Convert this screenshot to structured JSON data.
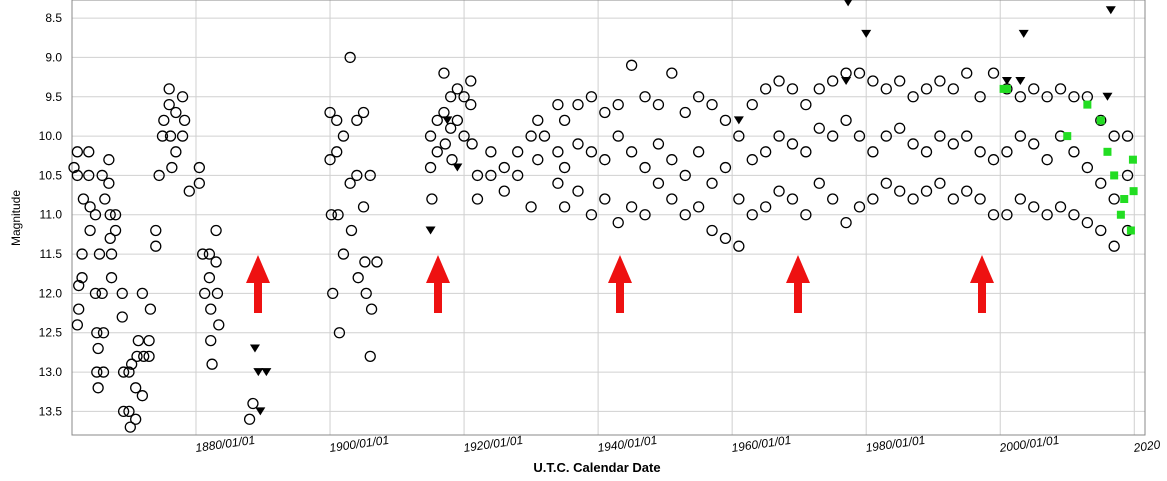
{
  "chart_data": {
    "type": "scatter",
    "xlabel": "U.T.C. Calendar Date",
    "ylabel": "Magnitude",
    "xlim": [
      1861.5,
      2021.6
    ],
    "ylim": [
      13.8,
      8.27
    ],
    "xticks": [
      {
        "value": 1880,
        "label": "1880/01/01"
      },
      {
        "value": 1900,
        "label": "1900/01/01"
      },
      {
        "value": 1920,
        "label": "1920/01/01"
      },
      {
        "value": 1940,
        "label": "1940/01/01"
      },
      {
        "value": 1960,
        "label": "1960/01/01"
      },
      {
        "value": 1980,
        "label": "1980/01/01"
      },
      {
        "value": 2000,
        "label": "2000/01/01"
      },
      {
        "value": 2020,
        "label": "2020"
      }
    ],
    "yticks": [
      8.5,
      {
        "value": 9,
        "label": "9.0"
      },
      9.5,
      {
        "value": 10,
        "label": "10.0"
      },
      10.5,
      {
        "value": 11,
        "label": "11.0"
      },
      11.5,
      {
        "value": 12,
        "label": "12.0"
      },
      12.5,
      {
        "value": 13,
        "label": "13.0"
      },
      13.5
    ],
    "grid": true,
    "series": [
      {
        "marker": "circle",
        "color": "#000000",
        "x": [
          1861.8,
          1862.3,
          1862.3,
          1862.3,
          1862.5,
          1862.5,
          1863,
          1863,
          1863.2,
          1864,
          1864,
          1864.2,
          1864.2,
          1865,
          1865,
          1865.2,
          1865.2,
          1865.4,
          1865.4,
          1865.6,
          1866,
          1866,
          1866.2,
          1866.2,
          1866.4,
          1867,
          1867,
          1867.2,
          1867.2,
          1867.4,
          1867.4,
          1868,
          1868,
          1869,
          1869,
          1869.2,
          1869.2,
          1870,
          1870,
          1870.2,
          1870.4,
          1871,
          1871,
          1871.2,
          1871.4,
          1872,
          1872,
          1872.2,
          1873,
          1873,
          1873.2,
          1874,
          1874,
          1874.5,
          1875,
          1875.2,
          1876,
          1876,
          1876.2,
          1876.4,
          1877,
          1877,
          1878,
          1878,
          1878.3,
          1879,
          1880.5,
          1880.5,
          1881,
          1881.3,
          1882,
          1882,
          1882.2,
          1882.2,
          1882.4,
          1883,
          1883,
          1883.2,
          1883.4,
          1888,
          1888.5,
          1900,
          1900,
          1900.2,
          1900.4,
          1901,
          1901,
          1901.2,
          1901.4,
          1902,
          1902,
          1903,
          1903,
          1903.2,
          1904,
          1904,
          1904.2,
          1905,
          1905,
          1905.2,
          1905.4,
          1906,
          1906,
          1906.2,
          1907,
          1915,
          1915,
          1915.2,
          1916,
          1916,
          1917,
          1917,
          1917.2,
          1918,
          1918,
          1918.2,
          1919,
          1919,
          1920,
          1920,
          1921,
          1921,
          1921.2,
          1922,
          1922,
          1924,
          1924,
          1926,
          1926,
          1928,
          1928,
          1930,
          1930,
          1931,
          1931,
          1932,
          1934,
          1934,
          1934,
          1935,
          1935,
          1935,
          1937,
          1937,
          1937,
          1939,
          1939,
          1939,
          1941,
          1941,
          1941,
          1943,
          1943,
          1943,
          1945,
          1945,
          1945,
          1947,
          1947,
          1947,
          1949,
          1949,
          1949,
          1951,
          1951,
          1951,
          1953,
          1953,
          1953,
          1955,
          1955,
          1955,
          1957,
          1957,
          1957,
          1959,
          1959,
          1959,
          1961,
          1961,
          1961,
          1963,
          1963,
          1963,
          1965,
          1965,
          1965,
          1967,
          1967,
          1967,
          1969,
          1969,
          1969,
          1971,
          1971,
          1971,
          1973,
          1973,
          1973,
          1975,
          1975,
          1975,
          1977,
          1977,
          1977,
          1979,
          1979,
          1979,
          1981,
          1981,
          1981,
          1983,
          1983,
          1983,
          1985,
          1985,
          1985,
          1987,
          1987,
          1987,
          1989,
          1989,
          1989,
          1991,
          1991,
          1991,
          1993,
          1993,
          1993,
          1995,
          1995,
          1995,
          1997,
          1997,
          1997,
          1999,
          1999,
          1999,
          2001,
          2001,
          2001,
          2003,
          2003,
          2003,
          2005,
          2005,
          2005,
          2007,
          2007,
          2007,
          2009,
          2009,
          2009,
          2011,
          2011,
          2011,
          2013,
          2013,
          2013,
          2015,
          2015,
          2015,
          2017,
          2017,
          2017,
          2019,
          2019,
          2019
        ],
        "values": [
          10.4,
          10.2,
          10.5,
          12.4,
          11.9,
          12.2,
          11.5,
          11.8,
          10.8,
          10.2,
          10.5,
          11.2,
          10.9,
          11.0,
          12.0,
          12.5,
          13.0,
          13.2,
          12.7,
          11.5,
          10.5,
          12.0,
          12.5,
          13.0,
          10.8,
          10.3,
          10.6,
          11.0,
          11.3,
          11.5,
          11.8,
          11.0,
          11.2,
          12.0,
          12.3,
          13.0,
          13.5,
          13.0,
          13.5,
          13.7,
          12.9,
          13.2,
          13.6,
          12.8,
          12.6,
          13.3,
          12.0,
          12.8,
          12.6,
          12.8,
          12.2,
          11.2,
          11.4,
          10.5,
          10.0,
          9.8,
          9.4,
          9.6,
          10.0,
          10.4,
          9.7,
          10.2,
          9.5,
          10.0,
          9.8,
          10.7,
          10.4,
          10.6,
          11.5,
          12.0,
          11.5,
          11.8,
          12.2,
          12.6,
          12.9,
          11.2,
          11.6,
          12.0,
          12.4,
          13.6,
          13.4,
          10.3,
          9.7,
          11.0,
          12.0,
          9.8,
          10.2,
          11.0,
          12.5,
          10.0,
          11.5,
          9.0,
          10.6,
          11.2,
          9.8,
          10.5,
          11.8,
          9.7,
          10.9,
          11.6,
          12.0,
          10.5,
          12.8,
          12.2,
          11.6,
          10.0,
          10.4,
          10.8,
          9.8,
          10.2,
          9.2,
          9.7,
          10.1,
          9.5,
          9.9,
          10.3,
          9.4,
          9.8,
          9.5,
          10.0,
          9.3,
          9.6,
          10.1,
          10.5,
          10.8,
          10.2,
          10.5,
          10.4,
          10.7,
          10.2,
          10.5,
          10.0,
          10.9,
          10.3,
          9.8,
          10.0,
          9.6,
          10.2,
          10.6,
          9.8,
          10.4,
          10.9,
          9.6,
          10.1,
          10.7,
          9.5,
          10.2,
          11.0,
          9.7,
          10.3,
          10.8,
          9.6,
          10.0,
          11.1,
          9.1,
          10.2,
          10.9,
          9.5,
          10.4,
          11.0,
          9.6,
          10.1,
          10.6,
          9.2,
          10.3,
          10.8,
          9.7,
          10.5,
          11.0,
          9.5,
          10.2,
          10.9,
          9.6,
          10.6,
          11.2,
          9.8,
          10.4,
          11.3,
          10.0,
          10.8,
          11.4,
          9.6,
          10.3,
          11.0,
          9.4,
          10.2,
          10.9,
          9.3,
          10.0,
          10.7,
          9.4,
          10.1,
          10.8,
          9.6,
          10.2,
          11.0,
          9.4,
          9.9,
          10.6,
          9.3,
          10.0,
          10.8,
          9.2,
          9.8,
          11.1,
          9.2,
          10.0,
          10.9,
          9.3,
          10.2,
          10.8,
          9.4,
          10.0,
          10.6,
          9.3,
          9.9,
          10.7,
          9.5,
          10.1,
          10.8,
          9.4,
          10.2,
          10.7,
          9.3,
          10.0,
          10.6,
          9.4,
          10.1,
          10.8,
          9.2,
          10.0,
          10.7,
          9.5,
          10.2,
          10.8,
          9.2,
          10.3,
          11.0,
          9.4,
          10.2,
          11.0,
          9.5,
          10.0,
          10.8,
          9.4,
          10.1,
          10.9,
          9.5,
          10.3,
          11.0,
          9.4,
          10.0,
          10.9,
          9.5,
          10.2,
          11.0,
          9.5,
          10.4,
          11.1,
          9.8,
          10.6,
          11.2,
          10.0,
          10.8,
          11.4,
          10.0,
          10.5,
          11.2
        ]
      },
      {
        "marker": "triangle",
        "color": "#000000",
        "x": [
          1888.8,
          1889.3,
          1890.5,
          1889.6,
          1915.0,
          1917.5,
          1919.0,
          1961.0,
          1977.3,
          1980.0,
          1977.0,
          2001.0,
          2003.0,
          2003.5,
          2016.5,
          2016.0
        ],
        "values": [
          12.7,
          13.0,
          13.0,
          13.5,
          11.2,
          9.8,
          10.4,
          9.8,
          8.3,
          8.7,
          9.3,
          9.3,
          9.3,
          8.7,
          8.4,
          9.5
        ]
      },
      {
        "marker": "square",
        "color": "#22dd22",
        "x": [
          2000.5,
          2001.0,
          2010.0,
          2013.0,
          2015.0,
          2016.0,
          2017.0,
          2018.0,
          2018.5,
          2019.5,
          2019.8,
          2019.9
        ],
        "values": [
          9.4,
          9.4,
          10.0,
          9.6,
          9.8,
          10.2,
          10.5,
          11.0,
          10.8,
          11.2,
          10.3,
          10.7
        ]
      }
    ]
  }
}
